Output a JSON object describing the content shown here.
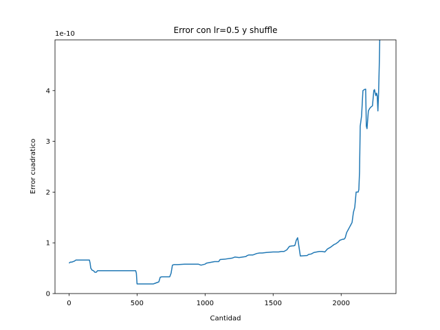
{
  "chart_data": {
    "type": "line",
    "title": "Error con lr=0.5 y shuffle",
    "xlabel": "Cantidad",
    "ylabel": "Error cuadratico",
    "y_multiplier_label": "1e-10",
    "xlim": [
      -103,
      2403
    ],
    "ylim": [
      0,
      5
    ],
    "x_ticks": [
      0,
      500,
      1000,
      1500,
      2000
    ],
    "x_tick_labels": [
      "0",
      "500",
      "1000",
      "1500",
      "2000"
    ],
    "y_ticks": [
      0,
      1,
      2,
      3,
      4
    ],
    "y_tick_labels": [
      "0",
      "1",
      "2",
      "3",
      "4"
    ],
    "grid": false,
    "legend": "none",
    "line_color": "#1f77b4",
    "series": [
      {
        "x": [
          0,
          10,
          20,
          40,
          50,
          60,
          100,
          150,
          155,
          160,
          170,
          180,
          190,
          200,
          210,
          220,
          300,
          400,
          450,
          490,
          495,
          500,
          600,
          610,
          620,
          630,
          640,
          650,
          660,
          670,
          680,
          700,
          720,
          740,
          750,
          760,
          770,
          800,
          850,
          880,
          900,
          950,
          970,
          1000,
          1010,
          1050,
          1070,
          1100,
          1110,
          1150,
          1200,
          1220,
          1250,
          1300,
          1310,
          1320,
          1350,
          1370,
          1380,
          1400,
          1420,
          1450,
          1500,
          1520,
          1540,
          1560,
          1570,
          1580,
          1600,
          1620,
          1640,
          1650,
          1660,
          1670,
          1680,
          1700,
          1750,
          1760,
          1780,
          1800,
          1820,
          1840,
          1860,
          1880,
          1890,
          1900,
          1920,
          1940,
          1950,
          1960,
          1980,
          1990,
          2000,
          2010,
          2020,
          2030,
          2040,
          2050,
          2060,
          2070,
          2080,
          2090,
          2100,
          2110,
          2115,
          2120,
          2125,
          2130,
          2135,
          2140,
          2150,
          2160,
          2170,
          2180,
          2185,
          2190,
          2200,
          2210,
          2220,
          2230,
          2240,
          2245,
          2250,
          2255,
          2260,
          2265,
          2270,
          2275,
          2280,
          2285,
          2290
        ],
        "y": [
          0.6,
          0.62,
          0.62,
          0.64,
          0.66,
          0.66,
          0.66,
          0.66,
          0.6,
          0.5,
          0.46,
          0.45,
          0.42,
          0.42,
          0.45,
          0.45,
          0.45,
          0.45,
          0.45,
          0.45,
          0.4,
          0.19,
          0.19,
          0.19,
          0.19,
          0.2,
          0.21,
          0.22,
          0.23,
          0.32,
          0.33,
          0.33,
          0.33,
          0.33,
          0.4,
          0.56,
          0.57,
          0.57,
          0.58,
          0.58,
          0.58,
          0.58,
          0.56,
          0.58,
          0.6,
          0.62,
          0.63,
          0.63,
          0.67,
          0.68,
          0.7,
          0.72,
          0.71,
          0.73,
          0.75,
          0.76,
          0.76,
          0.78,
          0.79,
          0.8,
          0.8,
          0.81,
          0.82,
          0.82,
          0.82,
          0.83,
          0.83,
          0.83,
          0.86,
          0.93,
          0.94,
          0.94,
          0.95,
          1.05,
          1.1,
          0.74,
          0.75,
          0.77,
          0.78,
          0.81,
          0.82,
          0.83,
          0.83,
          0.82,
          0.85,
          0.88,
          0.91,
          0.95,
          0.97,
          0.98,
          1.02,
          1.05,
          1.06,
          1.07,
          1.07,
          1.1,
          1.2,
          1.25,
          1.3,
          1.35,
          1.4,
          1.6,
          1.7,
          2.0,
          2.0,
          2.0,
          2.0,
          2.05,
          2.4,
          3.3,
          3.5,
          4.0,
          4.02,
          4.03,
          3.3,
          3.25,
          3.6,
          3.65,
          3.68,
          3.7,
          4.0,
          4.02,
          3.95,
          3.9,
          3.95,
          3.9,
          3.6,
          3.95,
          4.5,
          5.2,
          5.6
        ]
      }
    ]
  }
}
